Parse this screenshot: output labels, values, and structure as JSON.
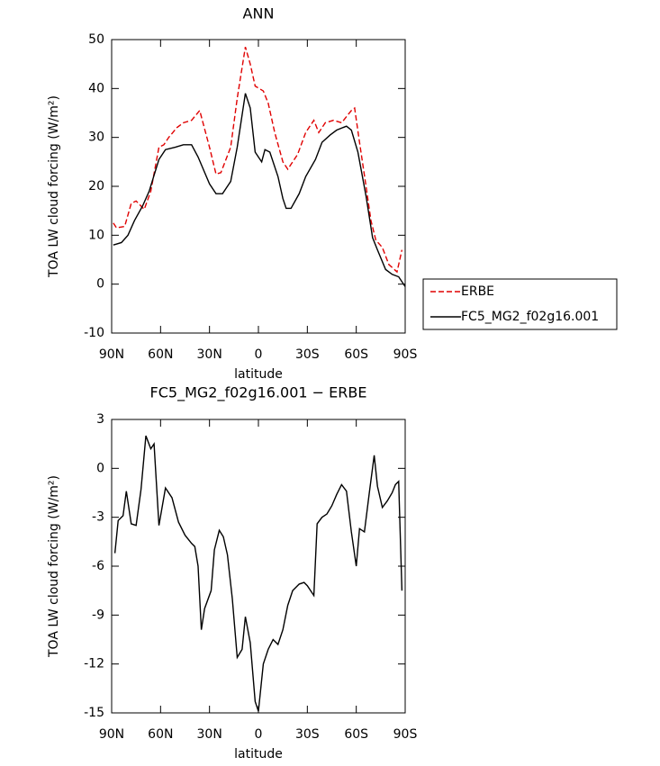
{
  "chart_data": [
    {
      "type": "line",
      "title": "ANN",
      "xlabel": "latitude",
      "ylabel": "TOA LW cloud forcing (W/m²)",
      "xlim": [
        90,
        -90
      ],
      "xticks": [
        {
          "value": 90,
          "label": "90N"
        },
        {
          "value": 60,
          "label": "60N"
        },
        {
          "value": 30,
          "label": "30N"
        },
        0,
        {
          "value": -30,
          "label": "30S"
        },
        {
          "value": -60,
          "label": "60S"
        },
        {
          "value": -90,
          "label": "90S"
        }
      ],
      "ylim": [
        -10,
        50
      ],
      "yticks": [
        -10,
        0,
        10,
        20,
        30,
        40,
        50
      ],
      "legend": "outside-right",
      "series": [
        {
          "name": "ERBE",
          "color": "#e00000",
          "dash": true,
          "x": [
            89,
            87,
            82,
            78,
            75,
            70,
            66,
            61,
            58,
            55,
            50,
            46,
            41,
            36,
            30,
            26,
            23,
            17,
            13,
            8,
            5,
            2,
            -3,
            -6,
            -10,
            -15,
            -18,
            -24,
            -29,
            -34,
            -37,
            -41,
            -46,
            -51,
            -57,
            -59,
            -62,
            -66,
            -69,
            -72,
            -76,
            -80,
            -85,
            -88
          ],
          "values": [
            12.5,
            11.5,
            11.8,
            16.5,
            17,
            15.3,
            19,
            28,
            28.5,
            30,
            32,
            33,
            33.5,
            35.5,
            28,
            22.5,
            22.8,
            28,
            38,
            48.5,
            45,
            40.5,
            39.5,
            37,
            31,
            25,
            23.5,
            26.5,
            31,
            33.5,
            31,
            33,
            33.5,
            33,
            35.5,
            36,
            29,
            20,
            13,
            9,
            7.5,
            4,
            2.5,
            7
          ]
        },
        {
          "name": "FC5_MG2_f02g16.001",
          "color": "#000000",
          "dash": false,
          "x": [
            89,
            84,
            80,
            76,
            71,
            67,
            61,
            57,
            51,
            46,
            41,
            37,
            30,
            26,
            22,
            17,
            13,
            8,
            5,
            2,
            -2,
            -4,
            -7,
            -12,
            -15,
            -17,
            -20,
            -25,
            -29,
            -35,
            -39,
            -44,
            -48,
            -54,
            -57,
            -61,
            -66,
            -70,
            -73,
            -78,
            -82,
            -86,
            -90
          ],
          "values": [
            8,
            8.5,
            10,
            13,
            16,
            19,
            25.5,
            27.5,
            28,
            28.5,
            28.5,
            26,
            20.5,
            18.5,
            18.5,
            21,
            28,
            39,
            36,
            27,
            25,
            27.5,
            27,
            22,
            17.5,
            15.5,
            15.5,
            18.5,
            22,
            25.5,
            29,
            30.5,
            31.5,
            32.3,
            31.5,
            27,
            18,
            9.5,
            7,
            3,
            2,
            1.5,
            -0.5
          ]
        }
      ]
    },
    {
      "type": "line",
      "title": "FC5_MG2_f02g16.001 − ERBE",
      "xlabel": "latitude",
      "ylabel": "TOA LW cloud forcing (W/m²)",
      "xlim": [
        90,
        -90
      ],
      "xticks": [
        {
          "value": 90,
          "label": "90N"
        },
        {
          "value": 60,
          "label": "60N"
        },
        {
          "value": 30,
          "label": "30N"
        },
        0,
        {
          "value": -30,
          "label": "30S"
        },
        {
          "value": -60,
          "label": "60S"
        },
        {
          "value": -90,
          "label": "90S"
        }
      ],
      "ylim": [
        -15,
        3
      ],
      "yticks": [
        -15,
        -12,
        -9,
        -6,
        -3,
        0,
        3
      ],
      "color": "#000000",
      "x": [
        88,
        86,
        83,
        81,
        78,
        75,
        72,
        69,
        66,
        64,
        61,
        57,
        53,
        49,
        45,
        41,
        39,
        37,
        35,
        33,
        29,
        27,
        24,
        21.5,
        19,
        16,
        13,
        10,
        8,
        5,
        2,
        0,
        -3,
        -6,
        -9,
        -12,
        -15,
        -18,
        -21,
        -25,
        -28,
        -30,
        -34,
        -36,
        -39,
        -42,
        -45,
        -48,
        -51,
        -54,
        -57,
        -60,
        -62,
        -65,
        -68,
        -71,
        -73,
        -76,
        -79,
        -82,
        -84,
        -86,
        -88
      ],
      "values": [
        -5.2,
        -3.2,
        -2.9,
        -1.4,
        -3.4,
        -3.5,
        -1.3,
        2.0,
        1.2,
        1.5,
        -3.5,
        -1.2,
        -1.8,
        -3.3,
        -4.1,
        -4.6,
        -4.8,
        -6.0,
        -9.9,
        -8.6,
        -7.5,
        -5.0,
        -3.8,
        -4.2,
        -5.3,
        -8.0,
        -11.6,
        -11.1,
        -9.1,
        -10.7,
        -14.3,
        -14.9,
        -12.0,
        -11.1,
        -10.5,
        -10.8,
        -9.9,
        -8.4,
        -7.5,
        -7.1,
        -7.0,
        -7.2,
        -7.8,
        -3.4,
        -3.0,
        -2.8,
        -2.3,
        -1.6,
        -1.0,
        -1.4,
        -3.9,
        -6.0,
        -3.7,
        -3.9,
        -1.5,
        0.8,
        -1.1,
        -2.4,
        -2.0,
        -1.5,
        -1.0,
        -0.8,
        -7.5
      ]
    }
  ]
}
